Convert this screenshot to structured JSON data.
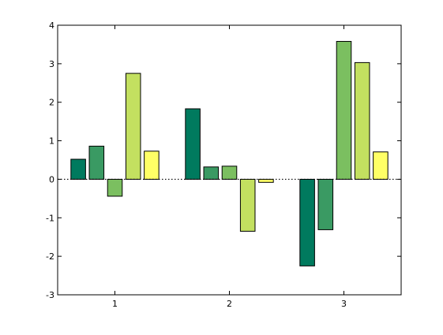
{
  "chart_data": {
    "type": "bar",
    "categories": [
      "1",
      "2",
      "3"
    ],
    "x": [
      1,
      2,
      3
    ],
    "series": [
      {
        "values": [
          0.52,
          1.83,
          -2.25
        ],
        "color": "#007a5e"
      },
      {
        "values": [
          0.86,
          0.32,
          -1.31
        ],
        "color": "#3a9a63"
      },
      {
        "values": [
          -0.44,
          0.34,
          3.58
        ],
        "color": "#7bbf60"
      },
      {
        "values": [
          2.75,
          -1.35,
          3.03
        ],
        "color": "#c3e060"
      },
      {
        "values": [
          0.73,
          -0.08,
          0.71
        ],
        "color": "#ffff66"
      }
    ],
    "ylim": [
      -3,
      4
    ],
    "yticks": [
      -3,
      -2,
      -1,
      0,
      1,
      2,
      3,
      4
    ],
    "xlim": [
      0.5,
      3.5
    ],
    "baseline": 0,
    "baseline_style": "dotted",
    "grid": false,
    "legend": "none",
    "title": "",
    "xlabel": "",
    "ylabel": ""
  }
}
